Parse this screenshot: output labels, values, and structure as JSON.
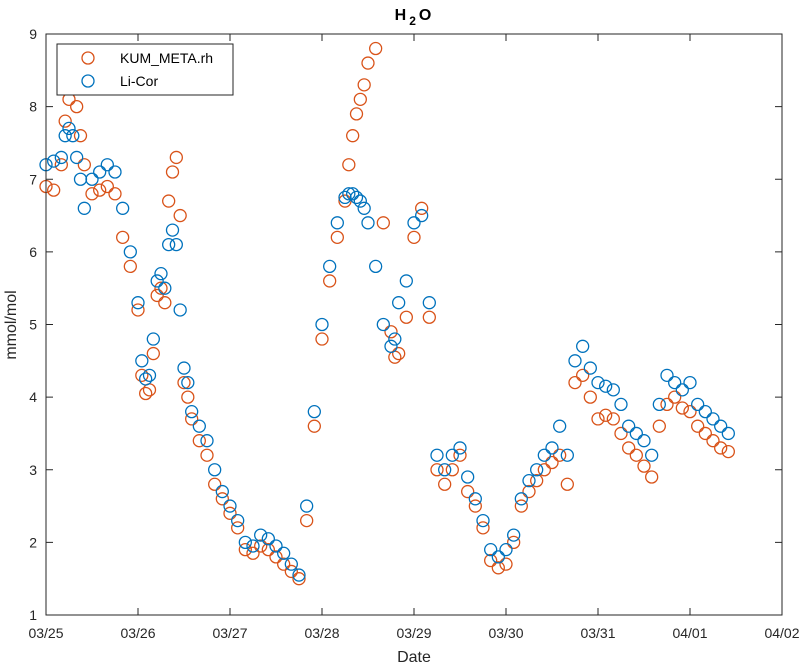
{
  "chart_data": {
    "type": "scatter",
    "title_main": "H",
    "title_sub": "2",
    "title_end": "O",
    "xlabel": "Date",
    "ylabel": "mmol/mol",
    "xlim": [
      "2000-03-25",
      "2000-04-02"
    ],
    "ylim": [
      1,
      9
    ],
    "x_ticks": [
      "03/25",
      "03/26",
      "03/27",
      "03/28",
      "03/29",
      "03/30",
      "03/31",
      "04/01",
      "04/02"
    ],
    "y_ticks": [
      "1",
      "2",
      "3",
      "4",
      "5",
      "6",
      "7",
      "8",
      "9"
    ],
    "grid": false,
    "legend_position": "top-left",
    "marker": "open-circle",
    "series": [
      {
        "name": "KUM_META.rh",
        "color": "#D95319",
        "x": [
          "2000-03-25T00:00",
          "2000-03-25T02:00",
          "2000-03-25T04:00",
          "2000-03-25T05:00",
          "2000-03-25T06:00",
          "2000-03-25T07:00",
          "2000-03-25T08:00",
          "2000-03-25T09:00",
          "2000-03-25T10:00",
          "2000-03-25T12:00",
          "2000-03-25T14:00",
          "2000-03-25T16:00",
          "2000-03-25T18:00",
          "2000-03-25T20:00",
          "2000-03-25T22:00",
          "2000-03-26T00:00",
          "2000-03-26T01:00",
          "2000-03-26T02:00",
          "2000-03-26T03:00",
          "2000-03-26T04:00",
          "2000-03-26T05:00",
          "2000-03-26T06:00",
          "2000-03-26T07:00",
          "2000-03-26T08:00",
          "2000-03-26T09:00",
          "2000-03-26T10:00",
          "2000-03-26T11:00",
          "2000-03-26T12:00",
          "2000-03-26T13:00",
          "2000-03-26T14:00",
          "2000-03-26T16:00",
          "2000-03-26T18:00",
          "2000-03-26T20:00",
          "2000-03-26T22:00",
          "2000-03-27T00:00",
          "2000-03-27T02:00",
          "2000-03-27T04:00",
          "2000-03-27T06:00",
          "2000-03-27T08:00",
          "2000-03-27T10:00",
          "2000-03-27T12:00",
          "2000-03-27T14:00",
          "2000-03-27T16:00",
          "2000-03-27T18:00",
          "2000-03-27T20:00",
          "2000-03-27T22:00",
          "2000-03-28T00:00",
          "2000-03-28T02:00",
          "2000-03-28T04:00",
          "2000-03-28T06:00",
          "2000-03-28T07:00",
          "2000-03-28T08:00",
          "2000-03-28T09:00",
          "2000-03-28T10:00",
          "2000-03-28T11:00",
          "2000-03-28T12:00",
          "2000-03-28T14:00",
          "2000-03-28T16:00",
          "2000-03-28T18:00",
          "2000-03-28T19:00",
          "2000-03-28T20:00",
          "2000-03-28T22:00",
          "2000-03-29T00:00",
          "2000-03-29T02:00",
          "2000-03-29T04:00",
          "2000-03-29T06:00",
          "2000-03-29T08:00",
          "2000-03-29T10:00",
          "2000-03-29T12:00",
          "2000-03-29T14:00",
          "2000-03-29T16:00",
          "2000-03-29T18:00",
          "2000-03-29T20:00",
          "2000-03-29T22:00",
          "2000-03-30T00:00",
          "2000-03-30T02:00",
          "2000-03-30T04:00",
          "2000-03-30T06:00",
          "2000-03-30T08:00",
          "2000-03-30T10:00",
          "2000-03-30T12:00",
          "2000-03-30T14:00",
          "2000-03-30T16:00",
          "2000-03-30T18:00",
          "2000-03-30T20:00",
          "2000-03-30T22:00",
          "2000-03-31T00:00",
          "2000-03-31T02:00",
          "2000-03-31T04:00",
          "2000-03-31T06:00",
          "2000-03-31T08:00",
          "2000-03-31T10:00",
          "2000-03-31T12:00",
          "2000-03-31T14:00",
          "2000-03-31T16:00",
          "2000-03-31T18:00",
          "2000-03-31T20:00",
          "2000-03-31T22:00",
          "2000-04-01T00:00",
          "2000-04-01T02:00",
          "2000-04-01T04:00",
          "2000-04-01T06:00",
          "2000-04-01T08:00",
          "2000-04-01T10:00"
        ],
        "y": [
          6.9,
          6.85,
          7.2,
          7.8,
          8.1,
          8.3,
          8.0,
          7.6,
          7.2,
          6.8,
          6.85,
          6.9,
          6.8,
          6.2,
          5.8,
          5.2,
          4.3,
          4.05,
          4.1,
          4.6,
          5.4,
          5.5,
          5.3,
          6.7,
          7.1,
          7.3,
          6.5,
          4.2,
          4.0,
          3.7,
          3.4,
          3.2,
          2.8,
          2.6,
          2.4,
          2.2,
          1.9,
          1.85,
          1.95,
          1.9,
          1.8,
          1.7,
          1.6,
          1.5,
          2.3,
          3.6,
          4.8,
          5.6,
          6.2,
          6.7,
          7.2,
          7.6,
          7.9,
          8.1,
          8.3,
          8.6,
          8.8,
          6.4,
          4.9,
          4.55,
          4.6,
          5.1,
          6.2,
          6.6,
          5.1,
          3.0,
          2.8,
          3.0,
          3.2,
          2.7,
          2.5,
          2.2,
          1.75,
          1.65,
          1.7,
          2.0,
          2.5,
          2.7,
          2.85,
          3.0,
          3.1,
          3.2,
          2.8,
          4.2,
          4.3,
          4.0,
          3.7,
          3.75,
          3.7,
          3.5,
          3.3,
          3.2,
          3.05,
          2.9,
          3.6,
          3.9,
          4.0,
          3.85,
          3.8,
          3.6,
          3.5,
          3.4,
          3.3,
          3.25
        ]
      },
      {
        "name": "Li-Cor",
        "color": "#0072BD",
        "x": [
          "2000-03-25T00:00",
          "2000-03-25T02:00",
          "2000-03-25T04:00",
          "2000-03-25T05:00",
          "2000-03-25T06:00",
          "2000-03-25T07:00",
          "2000-03-25T08:00",
          "2000-03-25T09:00",
          "2000-03-25T10:00",
          "2000-03-25T12:00",
          "2000-03-25T14:00",
          "2000-03-25T16:00",
          "2000-03-25T18:00",
          "2000-03-25T20:00",
          "2000-03-25T22:00",
          "2000-03-26T00:00",
          "2000-03-26T01:00",
          "2000-03-26T02:00",
          "2000-03-26T03:00",
          "2000-03-26T04:00",
          "2000-03-26T05:00",
          "2000-03-26T06:00",
          "2000-03-26T07:00",
          "2000-03-26T08:00",
          "2000-03-26T09:00",
          "2000-03-26T10:00",
          "2000-03-26T11:00",
          "2000-03-26T12:00",
          "2000-03-26T13:00",
          "2000-03-26T14:00",
          "2000-03-26T16:00",
          "2000-03-26T18:00",
          "2000-03-26T20:00",
          "2000-03-26T22:00",
          "2000-03-27T00:00",
          "2000-03-27T02:00",
          "2000-03-27T04:00",
          "2000-03-27T06:00",
          "2000-03-27T08:00",
          "2000-03-27T10:00",
          "2000-03-27T12:00",
          "2000-03-27T14:00",
          "2000-03-27T16:00",
          "2000-03-27T18:00",
          "2000-03-27T20:00",
          "2000-03-27T22:00",
          "2000-03-28T00:00",
          "2000-03-28T02:00",
          "2000-03-28T04:00",
          "2000-03-28T06:00",
          "2000-03-28T07:00",
          "2000-03-28T08:00",
          "2000-03-28T09:00",
          "2000-03-28T10:00",
          "2000-03-28T11:00",
          "2000-03-28T12:00",
          "2000-03-28T14:00",
          "2000-03-28T16:00",
          "2000-03-28T18:00",
          "2000-03-28T19:00",
          "2000-03-28T20:00",
          "2000-03-28T22:00",
          "2000-03-29T00:00",
          "2000-03-29T02:00",
          "2000-03-29T04:00",
          "2000-03-29T06:00",
          "2000-03-29T08:00",
          "2000-03-29T10:00",
          "2000-03-29T12:00",
          "2000-03-29T14:00",
          "2000-03-29T16:00",
          "2000-03-29T18:00",
          "2000-03-29T20:00",
          "2000-03-29T22:00",
          "2000-03-30T00:00",
          "2000-03-30T02:00",
          "2000-03-30T04:00",
          "2000-03-30T06:00",
          "2000-03-30T08:00",
          "2000-03-30T10:00",
          "2000-03-30T12:00",
          "2000-03-30T14:00",
          "2000-03-30T16:00",
          "2000-03-30T18:00",
          "2000-03-30T20:00",
          "2000-03-30T22:00",
          "2000-03-31T00:00",
          "2000-03-31T02:00",
          "2000-03-31T04:00",
          "2000-03-31T06:00",
          "2000-03-31T08:00",
          "2000-03-31T10:00",
          "2000-03-31T12:00",
          "2000-03-31T14:00",
          "2000-03-31T16:00",
          "2000-03-31T18:00",
          "2000-03-31T20:00",
          "2000-03-31T22:00",
          "2000-04-01T00:00",
          "2000-04-01T02:00",
          "2000-04-01T04:00",
          "2000-04-01T06:00",
          "2000-04-01T08:00",
          "2000-04-01T10:00"
        ],
        "y": [
          7.2,
          7.25,
          7.3,
          7.6,
          7.7,
          7.6,
          7.3,
          7.0,
          6.6,
          7.0,
          7.1,
          7.2,
          7.1,
          6.6,
          6.0,
          5.3,
          4.5,
          4.25,
          4.3,
          4.8,
          5.6,
          5.7,
          5.5,
          6.1,
          6.3,
          6.1,
          5.2,
          4.4,
          4.2,
          3.8,
          3.6,
          3.4,
          3.0,
          2.7,
          2.5,
          2.3,
          2.0,
          1.95,
          2.1,
          2.05,
          1.95,
          1.85,
          1.7,
          1.55,
          2.5,
          3.8,
          5.0,
          5.8,
          6.4,
          6.75,
          6.8,
          6.8,
          6.75,
          6.7,
          6.6,
          6.4,
          5.8,
          5.0,
          4.7,
          4.8,
          5.3,
          5.6,
          6.4,
          6.5,
          5.3,
          3.2,
          3.0,
          3.2,
          3.3,
          2.9,
          2.6,
          2.3,
          1.9,
          1.8,
          1.9,
          2.1,
          2.6,
          2.85,
          3.0,
          3.2,
          3.3,
          3.6,
          3.2,
          4.5,
          4.7,
          4.4,
          4.2,
          4.15,
          4.1,
          3.9,
          3.6,
          3.5,
          3.4,
          3.2,
          3.9,
          4.3,
          4.2,
          4.1,
          4.2,
          3.9,
          3.8,
          3.7,
          3.6,
          3.5
        ]
      }
    ]
  }
}
